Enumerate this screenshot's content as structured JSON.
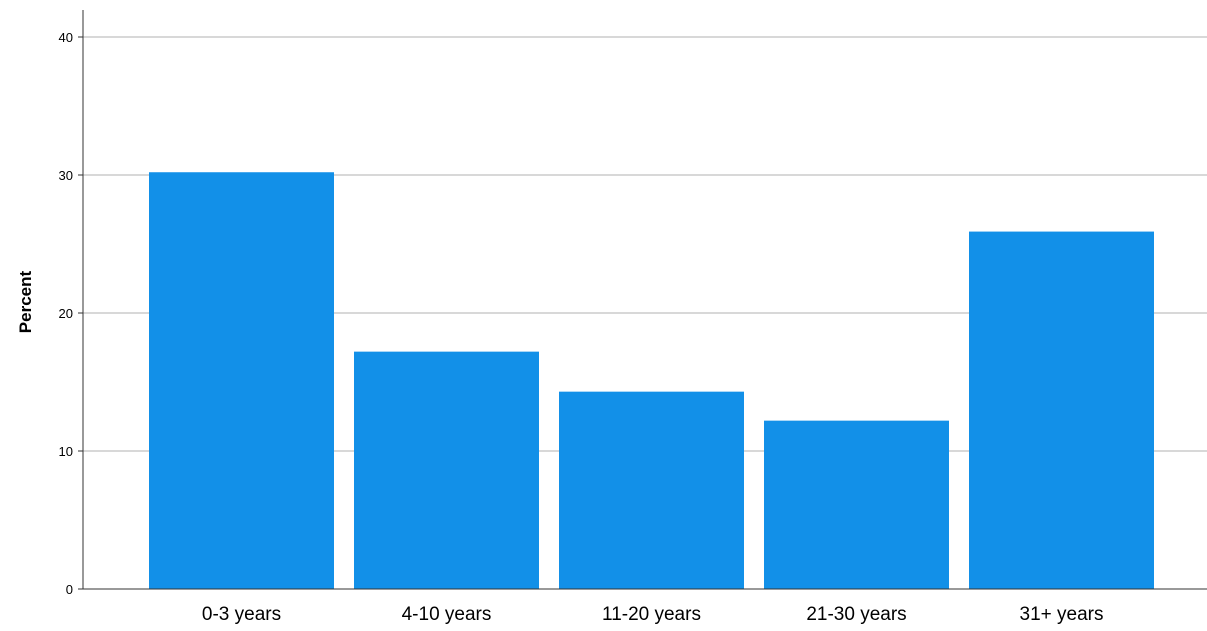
{
  "chart_data": {
    "type": "bar",
    "categories": [
      "0-3 years",
      "4-10 years",
      "11-20 years",
      "21-30 years",
      "31+ years"
    ],
    "values": [
      30.2,
      17.2,
      14.3,
      12.2,
      25.9
    ],
    "title": "",
    "xlabel": "",
    "ylabel": "Percent",
    "ylim": [
      0,
      42
    ],
    "yticks": [
      0,
      10,
      20,
      30,
      40
    ],
    "grid": "horizontal",
    "bar_color": "#1290e8",
    "grid_color": "#c0c0c0",
    "axis_color": "#333333"
  }
}
